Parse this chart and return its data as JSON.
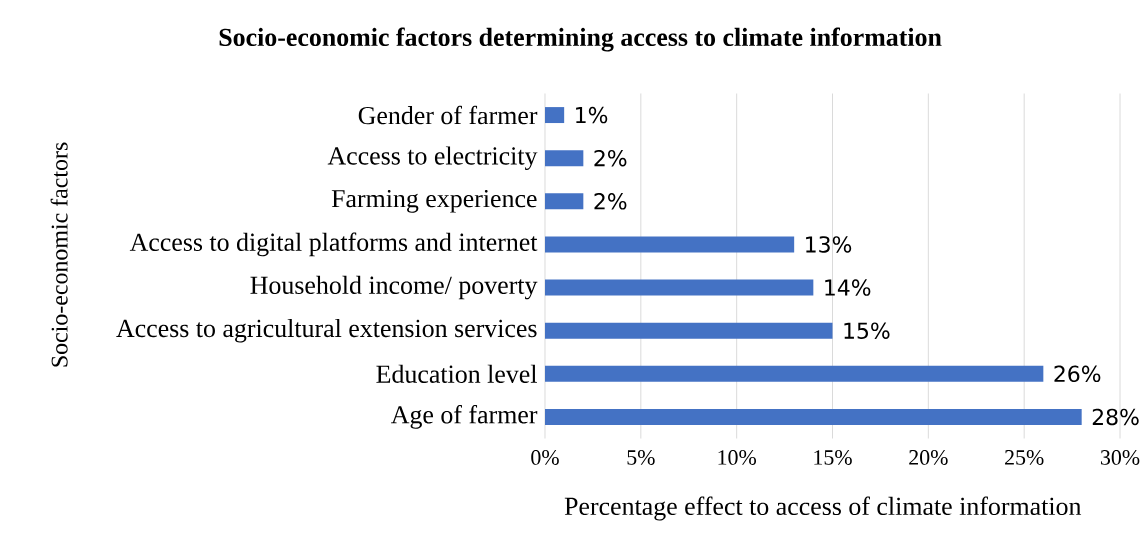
{
  "chart_data": {
    "type": "bar",
    "orientation": "horizontal",
    "title": "Socio-economic factors determining access to climate information",
    "xlabel": "Percentage effect to access of climate information",
    "ylabel": "Socio-economic factors",
    "categories": [
      "Gender of farmer",
      "Access to electricity",
      "Farming experience",
      "Access to digital platforms and internet",
      "Household income/ poverty",
      "Access to agricultural extension services",
      "Education level",
      "Age of farmer"
    ],
    "values": [
      1,
      2,
      2,
      13,
      14,
      15,
      26,
      28
    ],
    "value_labels": [
      "1%",
      "2%",
      "2%",
      "13%",
      "14%",
      "15%",
      "26%",
      "28%"
    ],
    "color": "#4472c4",
    "xlim": [
      0,
      30
    ],
    "xticks": [
      {
        "value": 0,
        "label": "0%"
      },
      {
        "value": 5,
        "label": "5%"
      },
      {
        "value": 10,
        "label": "10%"
      },
      {
        "value": 15,
        "label": "15%"
      },
      {
        "value": 20,
        "label": "20%"
      },
      {
        "value": 25,
        "label": "25%"
      },
      {
        "value": 30,
        "label": "30%"
      }
    ],
    "grid": "x"
  }
}
